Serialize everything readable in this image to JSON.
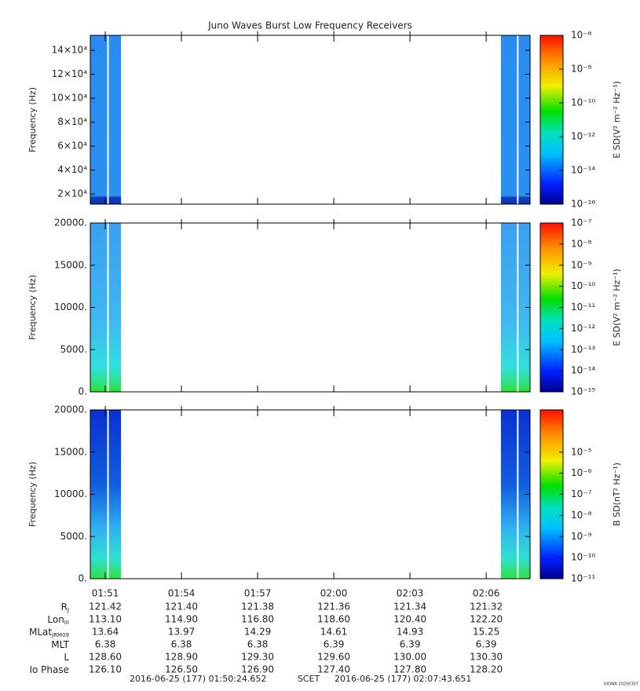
{
  "chart_data": {
    "type": "spectrogram",
    "title": "Juno Waves Burst Low Frequency Receivers",
    "xlim": [
      110.411,
      127.728
    ],
    "xticks": [
      {
        "value": 111,
        "label": "01:51"
      },
      {
        "value": 114,
        "label": "01:54"
      },
      {
        "value": 117,
        "label": "01:57"
      },
      {
        "value": 120,
        "label": "02:00"
      },
      {
        "value": 123,
        "label": "02:03"
      },
      {
        "value": 126,
        "label": "02:06"
      }
    ],
    "intervals": [
      [
        110.411,
        111.62
      ],
      [
        126.58,
        127.728
      ]
    ],
    "panels": [
      {
        "ylabel": "Frequency (Hz)",
        "ylim": [
          11500,
          152500
        ],
        "yticks": [
          {
            "value": 20000,
            "label": "2×10⁴"
          },
          {
            "value": 40000,
            "label": "4×10⁴"
          },
          {
            "value": 60000,
            "label": "6×10⁴"
          },
          {
            "value": 80000,
            "label": "8×10⁴"
          },
          {
            "value": 100000,
            "label": "10×10⁴"
          },
          {
            "value": 120000,
            "label": "12×10⁴"
          },
          {
            "value": 140000,
            "label": "14×10⁴"
          }
        ],
        "clabel": "E SD(V² m⁻² Hz⁻¹)",
        "clim": [
          1e-16,
          1e-06
        ],
        "log": true,
        "cticks": [
          {
            "value": 1e-16,
            "label": "10⁻¹⁶"
          },
          {
            "value": 1e-14,
            "label": "10⁻¹⁴"
          },
          {
            "value": 1e-12,
            "label": "10⁻¹²"
          },
          {
            "value": 1e-10,
            "label": "10⁻¹⁰"
          },
          {
            "value": 1e-08,
            "label": "10⁻⁸"
          },
          {
            "value": 1e-06,
            "label": "10⁻⁶"
          }
        ],
        "style": "e1"
      },
      {
        "ylabel": "Frequency (Hz)",
        "ylim": [
          0,
          20000
        ],
        "yticks": [
          {
            "value": 0,
            "label": "0."
          },
          {
            "value": 5000,
            "label": "5000."
          },
          {
            "value": 10000,
            "label": "10000."
          },
          {
            "value": 15000,
            "label": "15000."
          },
          {
            "value": 20000,
            "label": "20000."
          }
        ],
        "clabel": "E SD(V² m⁻² Hz⁻¹)",
        "clim": [
          1e-15,
          1e-07
        ],
        "log": true,
        "cticks": [
          {
            "value": 1e-15,
            "label": "10⁻¹⁵"
          },
          {
            "value": 1e-14,
            "label": "10⁻¹⁴"
          },
          {
            "value": 1e-13,
            "label": "10⁻¹³"
          },
          {
            "value": 1e-12,
            "label": "10⁻¹²"
          },
          {
            "value": 1e-11,
            "label": "10⁻¹¹"
          },
          {
            "value": 1e-10,
            "label": "10⁻¹⁰"
          },
          {
            "value": 1e-09,
            "label": "10⁻⁹"
          },
          {
            "value": 1e-08,
            "label": "10⁻⁸"
          },
          {
            "value": 1e-07,
            "label": "10⁻⁷"
          }
        ],
        "style": "e2"
      },
      {
        "ylabel": "Frequency (Hz)",
        "ylim": [
          0,
          20000
        ],
        "yticks": [
          {
            "value": 0,
            "label": "0."
          },
          {
            "value": 5000,
            "label": "5000."
          },
          {
            "value": 10000,
            "label": "10000."
          },
          {
            "value": 15000,
            "label": "15000."
          },
          {
            "value": 20000,
            "label": "20000."
          }
        ],
        "clabel": "B SD(nT² Hz⁻¹)",
        "clim": [
          1e-11,
          0.001
        ],
        "log": true,
        "cticks": [
          {
            "value": 1e-11,
            "label": "10⁻¹¹"
          },
          {
            "value": 1e-10,
            "label": "10⁻¹⁰"
          },
          {
            "value": 1e-09,
            "label": "10⁻⁹"
          },
          {
            "value": 1e-08,
            "label": "10⁻⁸"
          },
          {
            "value": 1e-07,
            "label": "10⁻⁷"
          },
          {
            "value": 1e-06,
            "label": "10⁻⁶"
          },
          {
            "value": 1e-05,
            "label": "10⁻⁵"
          }
        ],
        "style": "b"
      }
    ],
    "ephemeris": [
      {
        "label": "R",
        "sub": "J",
        "values": [
          "121.42",
          "121.40",
          "121.38",
          "121.36",
          "121.34",
          "121.32"
        ]
      },
      {
        "label": "Lon",
        "sub": "III",
        "values": [
          "113.10",
          "114.90",
          "116.80",
          "118.60",
          "120.40",
          "122.20"
        ]
      },
      {
        "label": "MLat",
        "sub": "JRM09",
        "values": [
          "13.64",
          "13.97",
          "14.29",
          "14.61",
          "14.93",
          "15.25"
        ]
      },
      {
        "label": "MLT",
        "values": [
          "6.38",
          "6.38",
          "6.38",
          "6.39",
          "6.39",
          "6.39"
        ]
      },
      {
        "label": "L",
        "values": [
          "128.60",
          "128.90",
          "129.30",
          "129.60",
          "130.00",
          "130.30"
        ]
      },
      {
        "label": "Io Phase",
        "values": [
          "126.10",
          "126.50",
          "126.90",
          "127.40",
          "127.80",
          "128.20"
        ]
      }
    ],
    "scet": {
      "start": "2016-06-25 (177) 01:50:24.652",
      "label": "SCET",
      "end": "2016-06-25 (177) 02:07:43.651"
    },
    "credit": "UIOWA 20200307"
  }
}
